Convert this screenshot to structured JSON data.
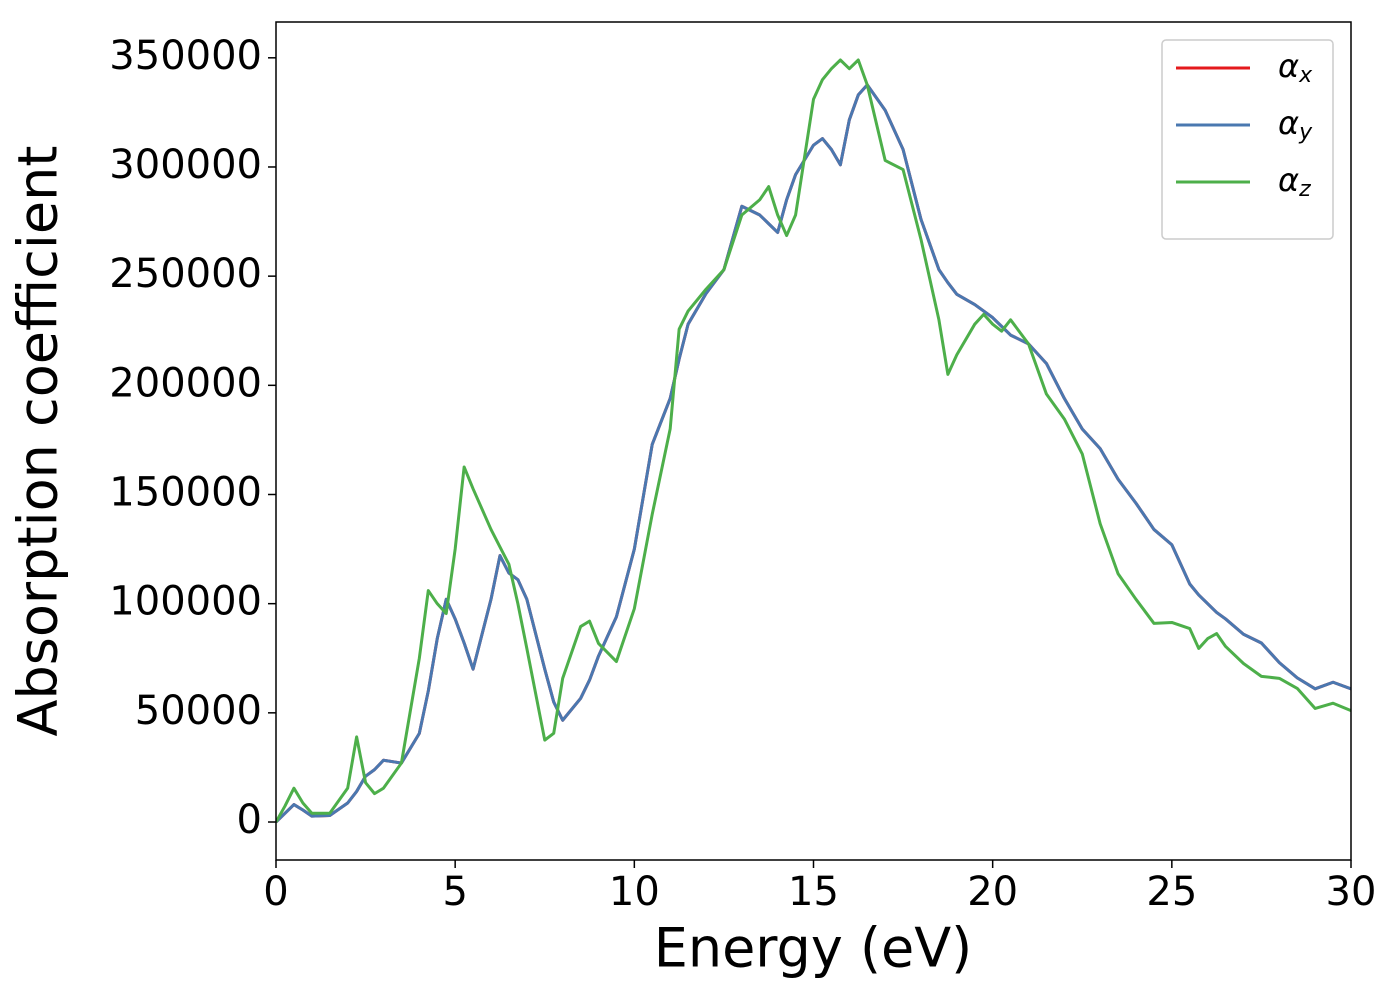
{
  "chart_data": {
    "type": "line",
    "x_label": "Energy (eV)",
    "y_label": "Absorption coefficient",
    "x": [
      0,
      0.25,
      0.5,
      0.75,
      1,
      1.5,
      2,
      2.25,
      2.5,
      2.75,
      3,
      3.5,
      4,
      4.25,
      4.5,
      4.75,
      5,
      5.25,
      5.5,
      6,
      6.25,
      6.5,
      6.75,
      7,
      7.5,
      7.75,
      8,
      8.5,
      8.75,
      9,
      9.5,
      10,
      10.5,
      11,
      11.25,
      11.5,
      12,
      12.5,
      13,
      13.5,
      13.75,
      14,
      14.25,
      14.5,
      15,
      15.25,
      15.5,
      15.75,
      16,
      16.25,
      16.5,
      17,
      17.5,
      18,
      18.5,
      18.75,
      19,
      19.5,
      19.75,
      20,
      20.25,
      20.5,
      21,
      21.5,
      22,
      22.5,
      23,
      23.5,
      24,
      24.5,
      25,
      25.5,
      25.75,
      26,
      26.25,
      26.5,
      27,
      27.5,
      28,
      28.5,
      29,
      29.5,
      30
    ],
    "series": [
      {
        "name": "αx",
        "color": "#e41a1c",
        "values": [
          0,
          4000,
          8000,
          5500,
          2700,
          3000,
          8700,
          14000,
          21000,
          24000,
          28300,
          27000,
          40600,
          60000,
          84000,
          102000,
          93000,
          82000,
          70000,
          102000,
          122000,
          114000,
          111000,
          102000,
          70000,
          55000,
          46600,
          56600,
          65000,
          76000,
          94000,
          125000,
          173000,
          194000,
          212000,
          228000,
          242000,
          253000,
          282000,
          278000,
          274000,
          270000,
          285000,
          296500,
          310000,
          313000,
          308000,
          301000,
          321600,
          333000,
          337600,
          326000,
          308000,
          276000,
          253000,
          247000,
          241700,
          237000,
          234000,
          231000,
          227000,
          223000,
          219000,
          210000,
          194000,
          180000,
          171000,
          157000,
          146000,
          134000,
          127000,
          109000,
          104000,
          100000,
          96000,
          93000,
          86000,
          82000,
          73000,
          66000,
          61000,
          64000,
          61000
        ]
      },
      {
        "name": "αy",
        "color": "#4a78b0",
        "values": [
          0,
          4000,
          8000,
          5500,
          2700,
          3000,
          8700,
          14000,
          21000,
          24000,
          28300,
          27000,
          40600,
          60000,
          84000,
          102000,
          93000,
          82000,
          70000,
          102000,
          122000,
          114000,
          111000,
          102000,
          70000,
          55000,
          46600,
          56600,
          65000,
          76000,
          94000,
          125000,
          173000,
          194000,
          212000,
          228000,
          242000,
          253000,
          282000,
          278000,
          274000,
          270000,
          285000,
          296500,
          310000,
          313000,
          308000,
          301000,
          321600,
          333000,
          337600,
          326000,
          308000,
          276000,
          253000,
          247000,
          241700,
          237000,
          234000,
          231000,
          227000,
          223000,
          219000,
          210000,
          194000,
          180000,
          171000,
          157000,
          146000,
          134000,
          127000,
          109000,
          104000,
          100000,
          96000,
          93000,
          86000,
          82000,
          73000,
          66000,
          61000,
          64000,
          61000
        ]
      },
      {
        "name": "αz",
        "color": "#4daf4a",
        "values": [
          0,
          7300,
          15500,
          8700,
          4000,
          4000,
          15500,
          39000,
          18000,
          13000,
          15500,
          27000,
          75000,
          106000,
          100000,
          95500,
          125000,
          162600,
          152600,
          134000,
          126000,
          118000,
          100000,
          79500,
          37500,
          40600,
          65800,
          89500,
          92000,
          81800,
          73500,
          97700,
          141000,
          180000,
          225700,
          234000,
          244000,
          253000,
          278000,
          285000,
          291000,
          278000,
          268600,
          278000,
          331000,
          340000,
          345000,
          349000,
          345000,
          349000,
          337600,
          303000,
          298800,
          266800,
          230000,
          205000,
          214000,
          228000,
          232500,
          228000,
          224800,
          230000,
          219000,
          196000,
          184600,
          168600,
          136600,
          113700,
          102000,
          91000,
          91400,
          88600,
          79500,
          84000,
          86300,
          80400,
          72600,
          66700,
          65800,
          61200,
          52000,
          54400,
          51000
        ]
      }
    ],
    "xlim": [
      0,
      30
    ],
    "xticks": [
      0,
      5,
      10,
      15,
      20,
      25,
      30
    ],
    "ylim": [
      -17400,
      366400
    ],
    "yticks": [
      0,
      50000,
      100000,
      150000,
      200000,
      250000,
      300000,
      350000
    ],
    "grid": false,
    "legend": "upper right"
  }
}
